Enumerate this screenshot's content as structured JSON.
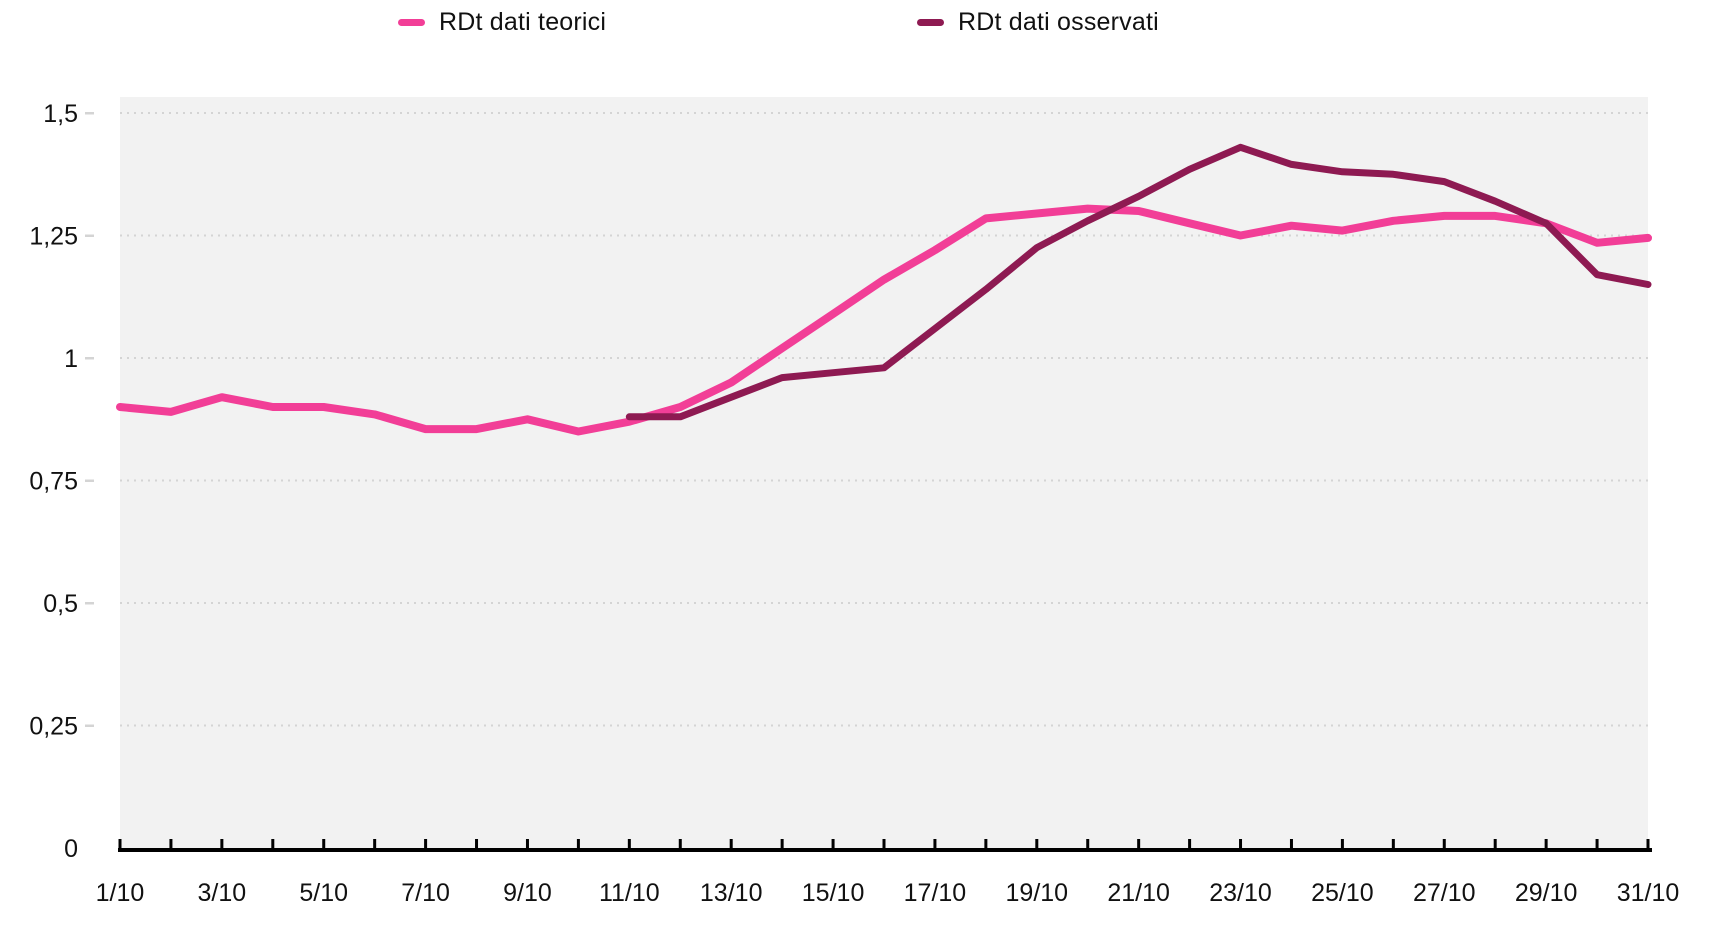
{
  "chart_data": {
    "type": "line",
    "title": "",
    "legend_position": "top",
    "grid": "horizontal-dotted",
    "plot_background": "#f2f2f2",
    "gridline_color": "#d4d4d4",
    "axis_color": "#000000",
    "text_color": "#111111",
    "x_domain_days": [
      1,
      31
    ],
    "x_tick_labels": [
      "1/10",
      "3/10",
      "5/10",
      "7/10",
      "9/10",
      "11/10",
      "13/10",
      "15/10",
      "17/10",
      "19/10",
      "21/10",
      "23/10",
      "25/10",
      "27/10",
      "29/10",
      "31/10"
    ],
    "y_tick_labels": [
      "0",
      "0,25",
      "0,5",
      "0,75",
      "1",
      "1,25",
      "1,5"
    ],
    "y_tick_values": [
      0,
      0.25,
      0.5,
      0.75,
      1,
      1.25,
      1.5
    ],
    "ylim": [
      0,
      1.5
    ],
    "series": [
      {
        "name": "RDt dati teorici",
        "color": "#f23e97",
        "start_day": 1,
        "values": [
          0.9,
          0.89,
          0.92,
          0.9,
          0.9,
          0.885,
          0.855,
          0.855,
          0.875,
          0.85,
          0.87,
          0.9,
          0.95,
          1.02,
          1.09,
          1.16,
          1.22,
          1.285,
          1.295,
          1.305,
          1.3,
          1.275,
          1.25,
          1.27,
          1.26,
          1.28,
          1.29,
          1.29,
          1.275,
          1.235,
          1.245
        ]
      },
      {
        "name": "RDt dati osservati",
        "color": "#8e1a52",
        "start_day": 11,
        "values": [
          0.88,
          0.88,
          0.92,
          0.96,
          0.97,
          0.98,
          1.06,
          1.14,
          1.225,
          1.28,
          1.33,
          1.385,
          1.43,
          1.395,
          1.38,
          1.375,
          1.36,
          1.32,
          1.275,
          1.17,
          1.15
        ]
      }
    ]
  }
}
